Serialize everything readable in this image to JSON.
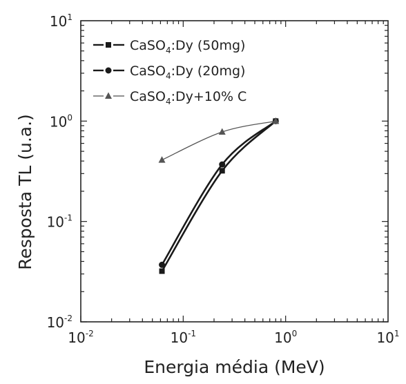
{
  "chart_data": {
    "type": "line",
    "title": "",
    "xlabel": "Energia média (MeV)",
    "ylabel": "Resposta TL (u.a.)",
    "xscale": "log",
    "yscale": "log",
    "xlim": [
      0.01,
      10
    ],
    "ylim": [
      0.01,
      10
    ],
    "x_ticks": [
      {
        "value": 0.01,
        "base": "10",
        "exp": "-2"
      },
      {
        "value": 0.1,
        "base": "10",
        "exp": "-1"
      },
      {
        "value": 1,
        "base": "10",
        "exp": "0"
      },
      {
        "value": 10,
        "base": "10",
        "exp": "1"
      }
    ],
    "y_ticks": [
      {
        "value": 0.01,
        "base": "10",
        "exp": "-2"
      },
      {
        "value": 0.1,
        "base": "10",
        "exp": "-1"
      },
      {
        "value": 1,
        "base": "10",
        "exp": "0"
      },
      {
        "value": 10,
        "base": "10",
        "exp": "1"
      }
    ],
    "grid": false,
    "legend_position": "top-left",
    "series": [
      {
        "name_main": "CaSO",
        "name_sub": "4",
        "name_rest": ":Dy (50mg)",
        "marker": "square",
        "line_style": "dashed",
        "line_width": "thick",
        "x": [
          0.062,
          0.24,
          0.8
        ],
        "y": [
          0.032,
          0.32,
          1.0
        ],
        "color": "#1a1a1a"
      },
      {
        "name_main": "CaSO",
        "name_sub": "4",
        "name_rest": ":Dy (20mg)",
        "marker": "circle",
        "line_style": "dashed",
        "line_width": "thick",
        "x": [
          0.062,
          0.24,
          0.8
        ],
        "y": [
          0.037,
          0.37,
          1.0
        ],
        "color": "#1a1a1a"
      },
      {
        "name_main": "CaSO",
        "name_sub": "4",
        "name_rest": ":Dy+10% C",
        "marker": "triangle",
        "line_style": "dashed",
        "line_width": "thin",
        "x": [
          0.062,
          0.24,
          0.8
        ],
        "y": [
          0.41,
          0.78,
          1.0
        ],
        "color": "#555555"
      }
    ]
  }
}
